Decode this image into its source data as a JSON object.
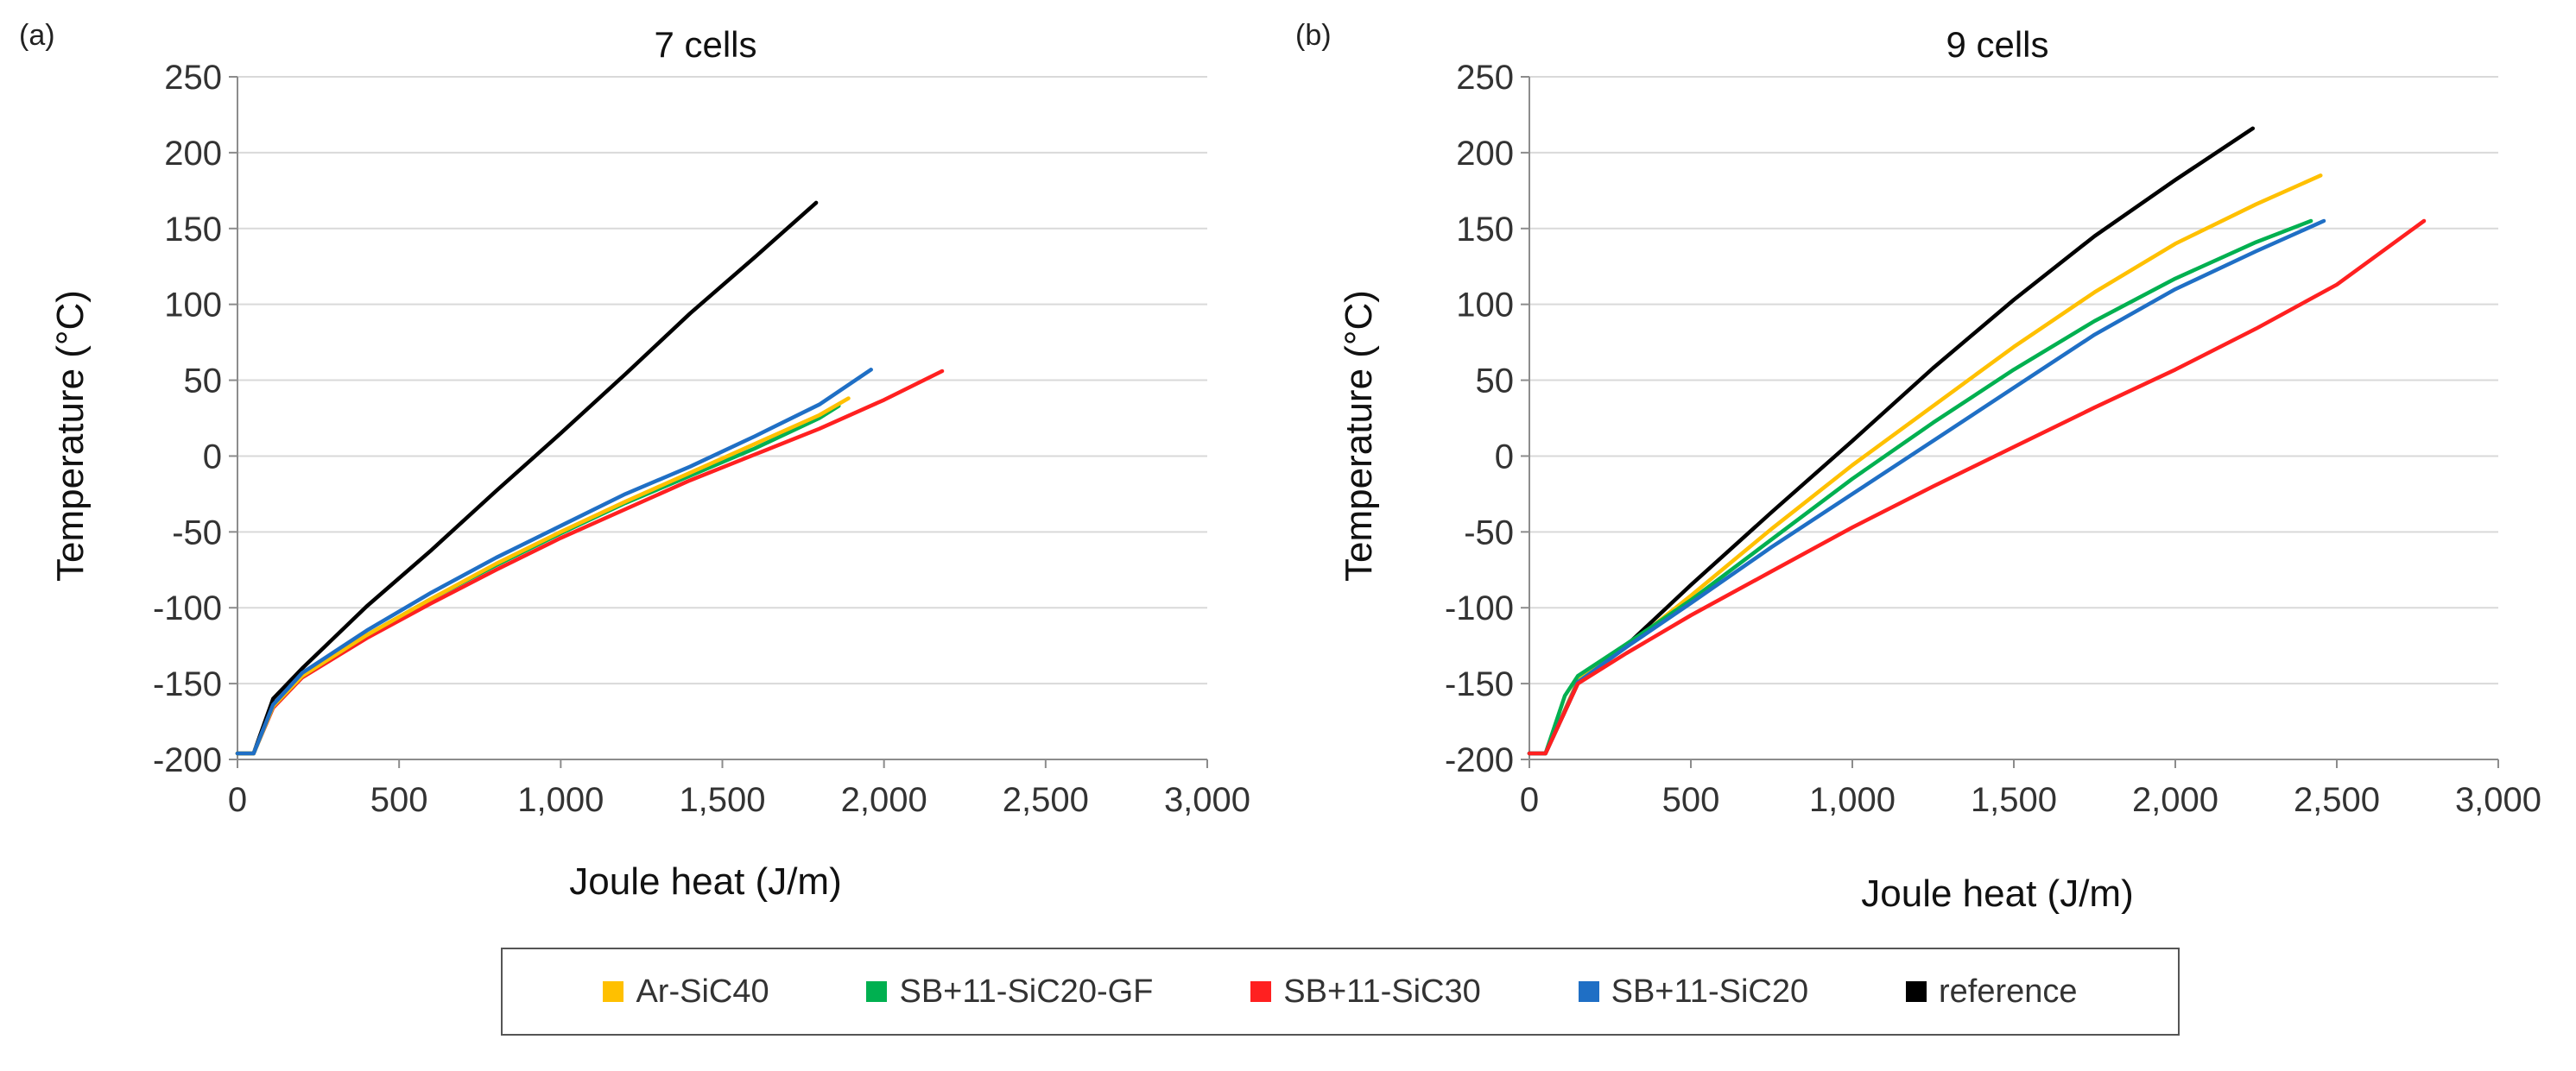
{
  "legend": [
    {
      "name": "Ar-SiC40",
      "color": "#FFC000"
    },
    {
      "name": "SB+11-SiC20-GF",
      "color": "#00B050"
    },
    {
      "name": "SB+11-SiC30",
      "color": "#FF2020"
    },
    {
      "name": "SB+11-SiC20",
      "color": "#1F6FC5"
    },
    {
      "name": "reference",
      "color": "#000000"
    }
  ],
  "chart_data": [
    {
      "type": "line",
      "panel_label": "(a)",
      "title": "7 cells",
      "xlabel": "Joule heat (J/m)",
      "ylabel": "Temperature (°C)",
      "xlim": [
        0,
        3000
      ],
      "ylim": [
        -200,
        250
      ],
      "xticks": [
        "0",
        "500",
        "1,000",
        "1,500",
        "2,000",
        "2,500",
        "3,000"
      ],
      "yticks": [
        "250",
        "200",
        "150",
        "100",
        "50",
        "0",
        "-50",
        "-100",
        "-150",
        "-200"
      ],
      "grid": "horizontal",
      "series": [
        {
          "name": "reference",
          "color": "#000000",
          "x": [
            0,
            50,
            110,
            200,
            400,
            600,
            800,
            1000,
            1200,
            1400,
            1600,
            1790
          ],
          "y": [
            -196,
            -196,
            -160,
            -140,
            -99,
            -62,
            -23,
            15,
            54,
            94,
            131,
            167
          ]
        },
        {
          "name": "SB+11-SiC30",
          "color": "#FF2020",
          "x": [
            0,
            50,
            110,
            200,
            400,
            600,
            800,
            1000,
            1200,
            1400,
            1600,
            1800,
            2000,
            2180
          ],
          "y": [
            -196,
            -196,
            -166,
            -146,
            -120,
            -97,
            -75,
            -54,
            -35,
            -16,
            1,
            18,
            37,
            56
          ]
        },
        {
          "name": "SB+11-SiC20-GF",
          "color": "#00B050",
          "x": [
            0,
            50,
            110,
            200,
            400,
            600,
            800,
            1000,
            1200,
            1400,
            1600,
            1800,
            1860
          ],
          "y": [
            -196,
            -196,
            -165,
            -145,
            -118,
            -94,
            -72,
            -51,
            -31,
            -13,
            5,
            25,
            33
          ]
        },
        {
          "name": "Ar-SiC40",
          "color": "#FFC000",
          "x": [
            0,
            50,
            110,
            200,
            400,
            600,
            800,
            1000,
            1200,
            1400,
            1600,
            1800,
            1890
          ],
          "y": [
            -196,
            -196,
            -165,
            -145,
            -118,
            -94,
            -71,
            -50,
            -30,
            -11,
            8,
            27,
            38
          ]
        },
        {
          "name": "SB+11-SiC20",
          "color": "#1F6FC5",
          "x": [
            0,
            50,
            110,
            200,
            400,
            600,
            800,
            1000,
            1200,
            1400,
            1600,
            1800,
            1960
          ],
          "y": [
            -196,
            -196,
            -164,
            -143,
            -115,
            -90,
            -67,
            -46,
            -25,
            -7,
            13,
            34,
            57
          ]
        }
      ]
    },
    {
      "type": "line",
      "panel_label": "(b)",
      "title": "9 cells",
      "xlabel": "Joule heat (J/m)",
      "ylabel": "Temperature (°C)",
      "xlim": [
        0,
        3000
      ],
      "ylim": [
        -200,
        250
      ],
      "xticks": [
        "0",
        "500",
        "1,000",
        "1,500",
        "2,000",
        "2,500",
        "3,000"
      ],
      "yticks": [
        "250",
        "200",
        "150",
        "100",
        "50",
        "0",
        "-50",
        "-100",
        "-150",
        "-200"
      ],
      "grid": "horizontal",
      "series": [
        {
          "name": "reference",
          "color": "#000000",
          "x": [
            0,
            50,
            150,
            300,
            500,
            750,
            1000,
            1250,
            1500,
            1750,
            2000,
            2240
          ],
          "y": [
            -196,
            -196,
            -150,
            -125,
            -85,
            -37,
            10,
            58,
            103,
            145,
            182,
            216
          ]
        },
        {
          "name": "Ar-SiC40",
          "color": "#FFC000",
          "x": [
            0,
            50,
            150,
            300,
            500,
            750,
            1000,
            1250,
            1500,
            1750,
            2000,
            2250,
            2450
          ],
          "y": [
            -196,
            -196,
            -148,
            -126,
            -92,
            -48,
            -6,
            33,
            72,
            108,
            140,
            166,
            185
          ]
        },
        {
          "name": "SB+11-SiC20-GF",
          "color": "#00B050",
          "x": [
            0,
            50,
            110,
            150,
            300,
            500,
            750,
            1000,
            1250,
            1500,
            1750,
            2000,
            2250,
            2420
          ],
          "y": [
            -196,
            -196,
            -158,
            -145,
            -124,
            -95,
            -55,
            -15,
            22,
            57,
            89,
            117,
            141,
            155
          ]
        },
        {
          "name": "SB+11-SiC20",
          "color": "#1F6FC5",
          "x": [
            0,
            50,
            150,
            300,
            500,
            750,
            1000,
            1250,
            1500,
            1750,
            2000,
            2250,
            2460
          ],
          "y": [
            -196,
            -196,
            -149,
            -126,
            -97,
            -60,
            -25,
            10,
            45,
            80,
            110,
            135,
            155
          ]
        },
        {
          "name": "SB+11-SiC30",
          "color": "#FF2020",
          "x": [
            0,
            50,
            150,
            300,
            500,
            750,
            1000,
            1250,
            1500,
            1750,
            2000,
            2250,
            2500,
            2770
          ],
          "y": [
            -196,
            -196,
            -150,
            -130,
            -105,
            -76,
            -47,
            -20,
            6,
            32,
            57,
            84,
            113,
            155
          ]
        }
      ]
    }
  ]
}
